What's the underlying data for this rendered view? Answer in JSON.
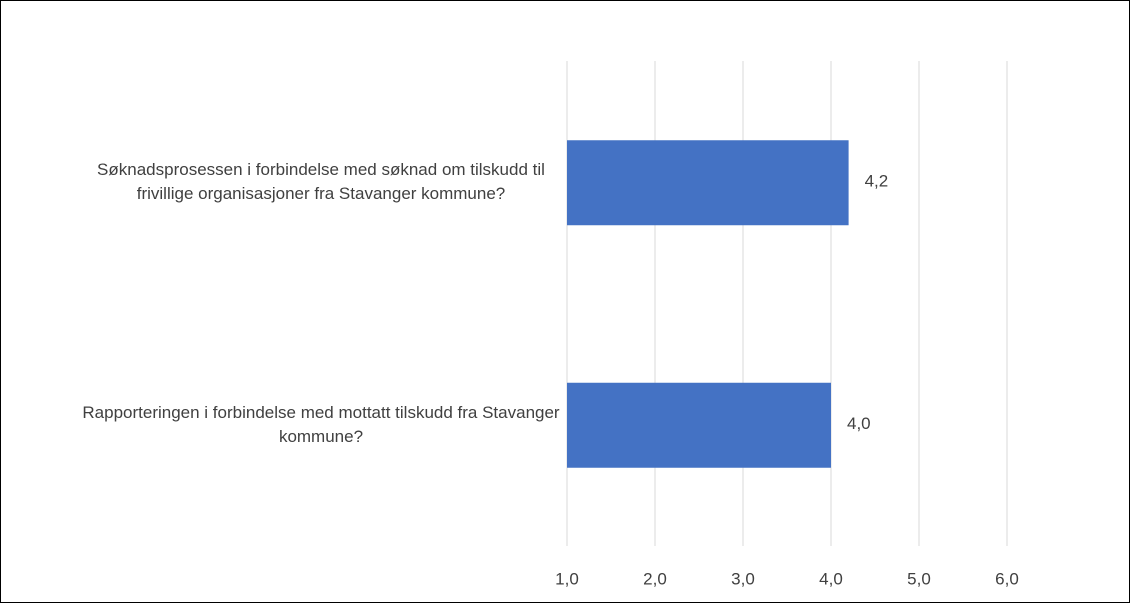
{
  "chart_data": {
    "type": "barh",
    "categories": [
      "Søknadsprosessen i forbindelse med søknad om tilskudd til frivillige organisasjoner fra Stavanger kommune?",
      "Rapporteringen i forbindelse med mottatt tilskudd fra Stavanger kommune?"
    ],
    "values": [
      4.2,
      4.0
    ],
    "value_labels": [
      "4,2",
      "4,0"
    ],
    "color": "#4472c4",
    "xlim": [
      1,
      6
    ],
    "xticks": [
      {
        "value": 1,
        "label": "1,0"
      },
      {
        "value": 2,
        "label": "2,0"
      },
      {
        "value": 3,
        "label": "3,0"
      },
      {
        "value": 4,
        "label": "4,0"
      },
      {
        "value": 5,
        "label": "5,0"
      },
      {
        "value": 6,
        "label": "6,0"
      }
    ],
    "grid": true
  }
}
